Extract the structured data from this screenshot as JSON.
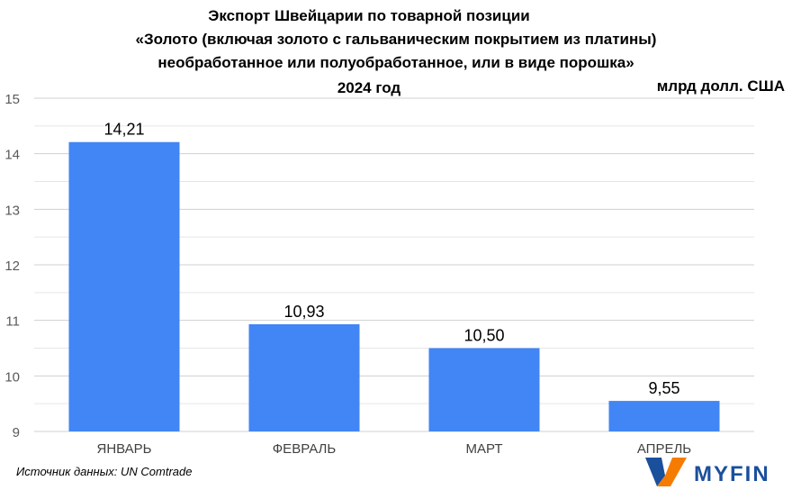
{
  "chart_data": {
    "type": "bar",
    "title_lines": [
      "Экспорт Швейцарии по товарной позиции",
      "«Золото (включая золото с гальваническим покрытием из платины)",
      "необработанное или полуобработанное, или в виде порошка»",
      "2024 год"
    ],
    "unit": "млрд долл. США",
    "categories": [
      "ЯНВАРЬ",
      "ФЕВРАЛЬ",
      "МАРТ",
      "АПРЕЛЬ"
    ],
    "values": [
      14.21,
      10.93,
      10.5,
      9.55
    ],
    "data_labels": [
      "14,21",
      "10,93",
      "10,50",
      "9,55"
    ],
    "ylim": [
      9,
      15
    ],
    "yticks": [
      9,
      10,
      11,
      12,
      13,
      14,
      15
    ],
    "grid": true,
    "bar_color": "#4285F4",
    "source": "Источник данных: UN Comtrade"
  },
  "logo": {
    "text": "MYFIN",
    "color": "#1a4f9c",
    "accent": "#f57c00"
  }
}
